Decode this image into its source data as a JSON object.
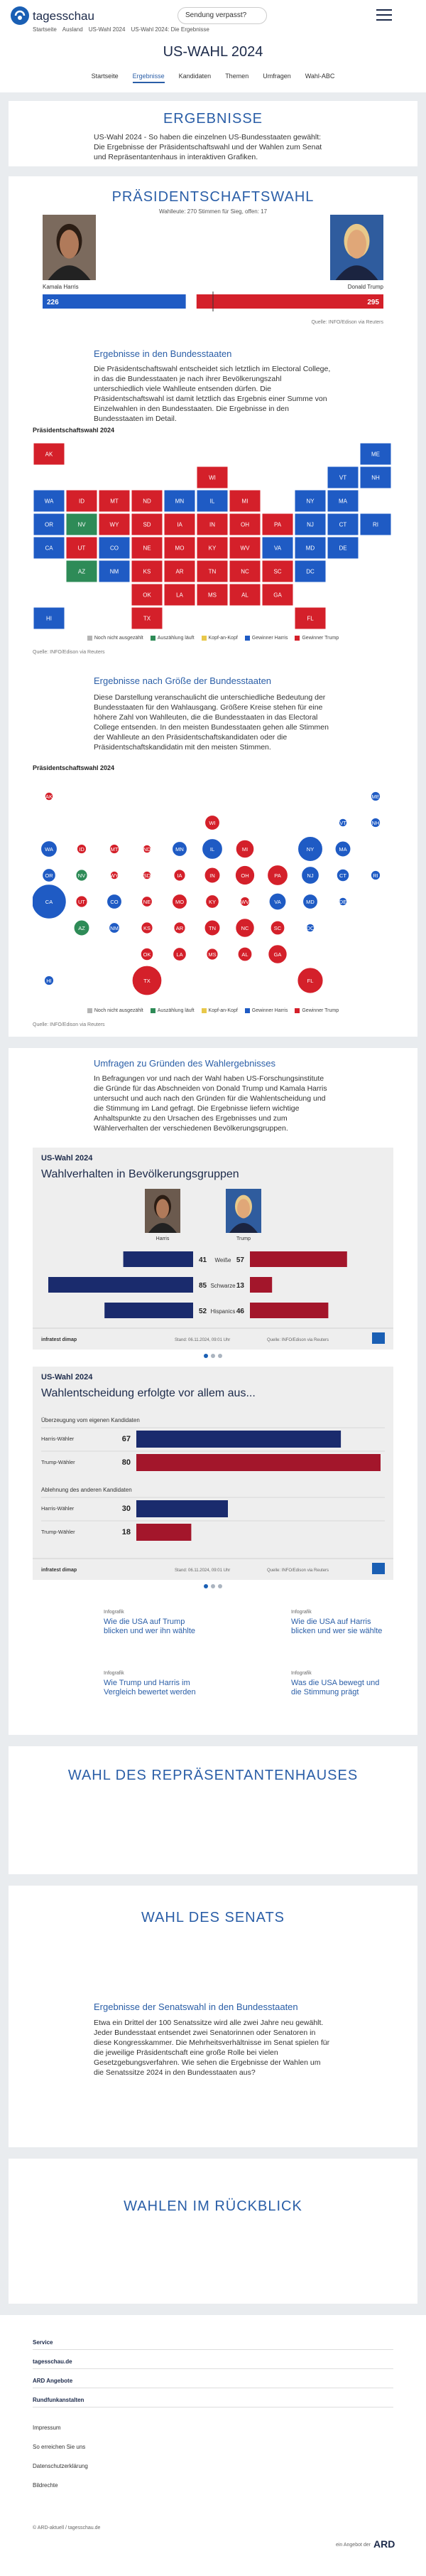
{
  "header": {
    "brand": "tagesschau",
    "missed": "Sendung verpasst?"
  },
  "breadcrumb": [
    "Startseite",
    "Ausland",
    "US-Wahl 2024",
    "US-Wahl 2024: Die Ergebnisse"
  ],
  "page_title": "US-WAHL 2024",
  "tabs": [
    "Startseite",
    "Ergebnisse",
    "Kandidaten",
    "Themen",
    "Umfragen",
    "Wahl-ABC"
  ],
  "active_tab": 1,
  "results": {
    "title": "ERGEBNISSE",
    "text": "US-Wahl 2024 - So haben die einzelnen US-Bundesstaaten gewählt: Die Ergebnisse der Präsidentschaftswahl und der Wahlen zum Senat und Repräsentantenhaus in interaktiven Grafiken."
  },
  "president": {
    "title": "PRÄSIDENTSCHAFTSWAHL",
    "subtitle": "Wahlleute: 270 Stimmen für Sieg, offen: 17",
    "candidates": [
      {
        "name": "Kamala Harris",
        "votes": 226,
        "color": "#1f5bc4"
      },
      {
        "name": "Donald Trump",
        "votes": 295,
        "color": "#d4202a"
      }
    ],
    "xlim": [
      0,
      538
    ],
    "source": "Quelle: INFO/Edison via Reuters"
  },
  "states_section": {
    "title": "Ergebnisse in den Bundesstaaten",
    "text": "Die Präsidentschaftswahl entscheidet sich letztlich im Electoral College, in das die Bundesstaaten je nach ihrer Bevölkerungszahl unterschiedlich viele Wahlleute entsenden dürfen. Die Präsidentschaftswahl ist damit letztlich das Ergebnis einer Summe von Einzelwahlen in den Bundesstaaten. Die Ergebnisse in den Bundesstaaten im Detail."
  },
  "state_map": {
    "type": "tile-map",
    "title": "Präsidentschaftswahl 2024",
    "source": "Quelle: INFO/Edison via Reuters"
  },
  "size_section": {
    "title": "Ergebnisse nach Größe der Bundesstaaten",
    "text": "Diese Darstellung veranschaulicht die unterschiedliche Bedeutung der Bundesstaaten für den Wahlausgang. Größere Kreise stehen für eine höhere Zahl von Wahlleuten, die die Bundesstaaten in das Electoral College entsenden. In den meisten Bundesstaaten gehen alle Stimmen der Wahlleute an den Präsidentschaftskandidaten oder die Präsidentschaftskandidatin mit den meisten Stimmen."
  },
  "bubble_map": {
    "type": "bubble-map",
    "title": "Präsidentschaftswahl 2024",
    "source": "Quelle: INFO/Edison via Reuters"
  },
  "legend": [
    {
      "key": "none",
      "label": "Noch nicht ausgezählt",
      "color": "#b5b5b5"
    },
    {
      "key": "counting",
      "label": "Auszählung läuft",
      "color": "#2e8b57"
    },
    {
      "key": "close",
      "label": "Kopf-an-Kopf",
      "color": "#e8c84a"
    },
    {
      "key": "harris",
      "label": "Gewinner Harris",
      "color": "#1f5bc4"
    },
    {
      "key": "trump",
      "label": "Gewinner Trump",
      "color": "#d4202a"
    }
  ],
  "states": [
    {
      "abbr": "AK",
      "col": 0,
      "row": 0,
      "status": "trump",
      "votes": 3
    },
    {
      "abbr": "ME",
      "col": 10,
      "row": 0,
      "status": "harris",
      "votes": 4
    },
    {
      "abbr": "WI",
      "col": 5,
      "row": 1,
      "status": "trump",
      "votes": 10
    },
    {
      "abbr": "VT",
      "col": 9,
      "row": 1,
      "status": "harris",
      "votes": 3
    },
    {
      "abbr": "NH",
      "col": 10,
      "row": 1,
      "status": "harris",
      "votes": 4
    },
    {
      "abbr": "WA",
      "col": 0,
      "row": 2,
      "status": "harris",
      "votes": 12
    },
    {
      "abbr": "ID",
      "col": 1,
      "row": 2,
      "status": "trump",
      "votes": 4
    },
    {
      "abbr": "MT",
      "col": 2,
      "row": 2,
      "status": "trump",
      "votes": 4
    },
    {
      "abbr": "ND",
      "col": 3,
      "row": 2,
      "status": "trump",
      "votes": 3
    },
    {
      "abbr": "MN",
      "col": 4,
      "row": 2,
      "status": "harris",
      "votes": 10
    },
    {
      "abbr": "IL",
      "col": 5,
      "row": 2,
      "status": "harris",
      "votes": 19
    },
    {
      "abbr": "MI",
      "col": 6,
      "row": 2,
      "status": "trump",
      "votes": 15
    },
    {
      "abbr": "NY",
      "col": 8,
      "row": 2,
      "status": "harris",
      "votes": 28
    },
    {
      "abbr": "MA",
      "col": 9,
      "row": 2,
      "status": "harris",
      "votes": 11
    },
    {
      "abbr": "OR",
      "col": 0,
      "row": 3,
      "status": "harris",
      "votes": 8
    },
    {
      "abbr": "NV",
      "col": 1,
      "row": 3,
      "status": "counting",
      "votes": 6
    },
    {
      "abbr": "WY",
      "col": 2,
      "row": 3,
      "status": "trump",
      "votes": 3
    },
    {
      "abbr": "SD",
      "col": 3,
      "row": 3,
      "status": "trump",
      "votes": 3
    },
    {
      "abbr": "IA",
      "col": 4,
      "row": 3,
      "status": "trump",
      "votes": 6
    },
    {
      "abbr": "IN",
      "col": 5,
      "row": 3,
      "status": "trump",
      "votes": 11
    },
    {
      "abbr": "OH",
      "col": 6,
      "row": 3,
      "status": "trump",
      "votes": 17
    },
    {
      "abbr": "PA",
      "col": 7,
      "row": 3,
      "status": "trump",
      "votes": 19
    },
    {
      "abbr": "NJ",
      "col": 8,
      "row": 3,
      "status": "harris",
      "votes": 14
    },
    {
      "abbr": "CT",
      "col": 9,
      "row": 3,
      "status": "harris",
      "votes": 7
    },
    {
      "abbr": "RI",
      "col": 10,
      "row": 3,
      "status": "harris",
      "votes": 4
    },
    {
      "abbr": "CA",
      "col": 0,
      "row": 4,
      "status": "harris",
      "votes": 54
    },
    {
      "abbr": "UT",
      "col": 1,
      "row": 4,
      "status": "trump",
      "votes": 6
    },
    {
      "abbr": "CO",
      "col": 2,
      "row": 4,
      "status": "harris",
      "votes": 10
    },
    {
      "abbr": "NE",
      "col": 3,
      "row": 4,
      "status": "trump",
      "votes": 5
    },
    {
      "abbr": "MO",
      "col": 4,
      "row": 4,
      "status": "trump",
      "votes": 10
    },
    {
      "abbr": "KY",
      "col": 5,
      "row": 4,
      "status": "trump",
      "votes": 8
    },
    {
      "abbr": "WV",
      "col": 6,
      "row": 4,
      "status": "trump",
      "votes": 4
    },
    {
      "abbr": "VA",
      "col": 7,
      "row": 4,
      "status": "harris",
      "votes": 13
    },
    {
      "abbr": "MD",
      "col": 8,
      "row": 4,
      "status": "harris",
      "votes": 10
    },
    {
      "abbr": "DE",
      "col": 9,
      "row": 4,
      "status": "harris",
      "votes": 3
    },
    {
      "abbr": "AZ",
      "col": 1,
      "row": 5,
      "status": "counting",
      "votes": 11
    },
    {
      "abbr": "NM",
      "col": 2,
      "row": 5,
      "status": "harris",
      "votes": 5
    },
    {
      "abbr": "KS",
      "col": 3,
      "row": 5,
      "status": "trump",
      "votes": 6
    },
    {
      "abbr": "AR",
      "col": 4,
      "row": 5,
      "status": "trump",
      "votes": 6
    },
    {
      "abbr": "TN",
      "col": 5,
      "row": 5,
      "status": "trump",
      "votes": 11
    },
    {
      "abbr": "NC",
      "col": 6,
      "row": 5,
      "status": "trump",
      "votes": 16
    },
    {
      "abbr": "SC",
      "col": 7,
      "row": 5,
      "status": "trump",
      "votes": 9
    },
    {
      "abbr": "DC",
      "col": 8,
      "row": 5,
      "status": "harris",
      "votes": 3
    },
    {
      "abbr": "OK",
      "col": 3,
      "row": 6,
      "status": "trump",
      "votes": 7
    },
    {
      "abbr": "LA",
      "col": 4,
      "row": 6,
      "status": "trump",
      "votes": 8
    },
    {
      "abbr": "MS",
      "col": 5,
      "row": 6,
      "status": "trump",
      "votes": 6
    },
    {
      "abbr": "AL",
      "col": 6,
      "row": 6,
      "status": "trump",
      "votes": 9
    },
    {
      "abbr": "GA",
      "col": 7,
      "row": 6,
      "status": "trump",
      "votes": 16
    },
    {
      "abbr": "HI",
      "col": 0,
      "row": 7,
      "status": "harris",
      "votes": 4
    },
    {
      "abbr": "TX",
      "col": 3,
      "row": 7,
      "status": "trump",
      "votes": 40
    },
    {
      "abbr": "FL",
      "col": 8,
      "row": 7,
      "status": "trump",
      "votes": 30
    }
  ],
  "polls": {
    "title": "Umfragen zu Gründen des Wahlergebnisses",
    "text": "In Befragungen vor und nach der Wahl haben US-Forschungsinstitute die Gründe für das Abschneiden von Donald Trump und Kamala Harris untersucht und auch nach den Gründen für die Wahlentscheidung und die Stimmung im Land gefragt. Die Ergebnisse liefern wichtige Anhaltspunkte zu den Ursachen des Ergebnisses und zum Wählerverhalten der verschiedenen Bevölkerungsgruppen."
  },
  "groups_chart": {
    "type": "butterfly",
    "kicker": "US-Wahl 2024",
    "title": "Wahlverhalten in Bevölkerungsgruppen",
    "categories": [
      "Weiße",
      "Schwarze",
      "Hispanics"
    ],
    "series": [
      {
        "name": "Harris",
        "color": "#1a2b6d",
        "values": [
          41,
          85,
          52
        ]
      },
      {
        "name": "Trump",
        "color": "#a3162b",
        "values": [
          57,
          13,
          46
        ]
      }
    ],
    "xlim": [
      0,
      100
    ],
    "brand": "infratest dimap",
    "stand": "Stand: 06.11.2024, 09:01 Uhr",
    "source": "Quelle: INFO/Edison via Reuters"
  },
  "motive_chart": {
    "type": "grouped-hbar",
    "kicker": "US-Wahl 2024",
    "title": "Wahlentscheidung erfolgte vor allem aus...",
    "groups": [
      {
        "label": "Überzeugung vom eigenen Kandidaten",
        "rows": [
          {
            "name": "Harris-Wähler",
            "value": 67,
            "color": "#1a2b6d"
          },
          {
            "name": "Trump-Wähler",
            "value": 80,
            "color": "#a3162b"
          }
        ]
      },
      {
        "label": "Ablehnung des anderen Kandidaten",
        "rows": [
          {
            "name": "Harris-Wähler",
            "value": 30,
            "color": "#1a2b6d"
          },
          {
            "name": "Trump-Wähler",
            "value": 18,
            "color": "#a3162b"
          }
        ]
      }
    ],
    "xlim": [
      0,
      100
    ],
    "brand": "infratest dimap",
    "stand": "Stand: 06.11.2024, 09:01 Uhr",
    "source": "Quelle: INFO/Edison via Reuters"
  },
  "teasers": [
    {
      "tag": "Infografik",
      "title": "Wie die USA auf Trump blicken und wer ihn wählte"
    },
    {
      "tag": "Infografik",
      "title": "Wie die USA auf Harris blicken und wer sie wählte"
    },
    {
      "tag": "Infografik",
      "title": "Wie Trump und Harris im Vergleich bewertet werden"
    },
    {
      "tag": "Infografik",
      "title": "Was die USA bewegt und die Stimmung prägt"
    }
  ],
  "house": {
    "title": "WAHL DES REPRÄSENTANTENHAUSES"
  },
  "senate": {
    "title": "WAHL DES SENATS",
    "heading": "Ergebnisse der Senatswahl in den Bundesstaaten",
    "text": "Etwa ein Drittel der 100 Senatssitze wird alle zwei Jahre neu gewählt. Jeder Bundesstaat entsendet zwei Senatorinnen oder Senatoren in diese Kongresskammer. Die Mehrheitsverhältnisse im Senat spielen für die jeweilige Präsidentschaft eine große Rolle bei vielen Gesetzgebungsverfahren. Wie sehen die Ergebnisse der Wahlen um die Senatssitze 2024 in den Bundesstaaten aus?"
  },
  "history": {
    "title": "WAHLEN IM RÜCKBLICK"
  },
  "footer": {
    "sections": [
      "Service",
      "tagesschau.de",
      "ARD Angebote",
      "Rundfunkanstalten"
    ],
    "links": [
      "Impressum",
      "So erreichen Sie uns",
      "Datenschutzerklärung",
      "Bildrechte"
    ],
    "copyright": "© ARD-aktuell / tagesschau.de",
    "ard_note": "ein Angebot der",
    "ard_logo": "ARD"
  }
}
